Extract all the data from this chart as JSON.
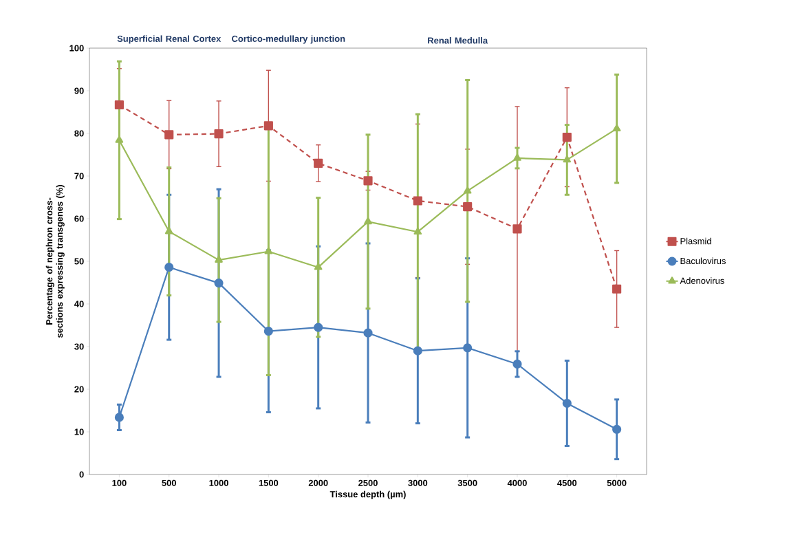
{
  "chart_data": {
    "type": "line",
    "xlabel": "Tissue depth (µm)",
    "ylabel": "Percentage of nephron cross-sections expressing transgenes (%)",
    "categories": [
      "100",
      "500",
      "1000",
      "1500",
      "2000",
      "2500",
      "3000",
      "3500",
      "4000",
      "4500",
      "5000"
    ],
    "ylim": [
      0,
      100
    ],
    "yticks": [
      0,
      10,
      20,
      30,
      40,
      50,
      60,
      70,
      80,
      90,
      100
    ],
    "grid": false,
    "legend": "right",
    "annotations": [
      "Superficial Renal Cortex",
      "Cortico-medullary junction",
      "Renal Medulla"
    ],
    "series": [
      {
        "name": "Plasmid",
        "color": "#c0504d",
        "marker": "square",
        "line_style": "dashed",
        "values": [
          86.7,
          79.7,
          79.9,
          81.8,
          73,
          68.9,
          64.2,
          62.8,
          57.6,
          79.1,
          43.5
        ],
        "errors": [
          8.5,
          8,
          7.7,
          13,
          4.3,
          2.2,
          18,
          13.5,
          28.7,
          11.6,
          9
        ]
      },
      {
        "name": "Baculovirus",
        "color": "#4a7ebb",
        "marker": "circle",
        "line_style": "solid",
        "values": [
          13.4,
          48.6,
          44.9,
          33.6,
          34.5,
          33.2,
          29,
          29.7,
          25.9,
          16.7,
          10.6
        ],
        "errors": [
          3,
          17,
          22,
          19,
          19,
          21,
          17,
          21,
          3,
          10,
          7
        ]
      },
      {
        "name": "Adenovirus",
        "color": "#9bbb59",
        "marker": "triangle",
        "line_style": "solid",
        "values": [
          78.4,
          57,
          50.3,
          52.3,
          48.6,
          59.3,
          56.9,
          66.5,
          74.2,
          73.8,
          81.1
        ],
        "errors": [
          18.5,
          15,
          14.5,
          29,
          16.3,
          20.4,
          27.6,
          26,
          2.4,
          8.2,
          12.7
        ]
      }
    ]
  }
}
